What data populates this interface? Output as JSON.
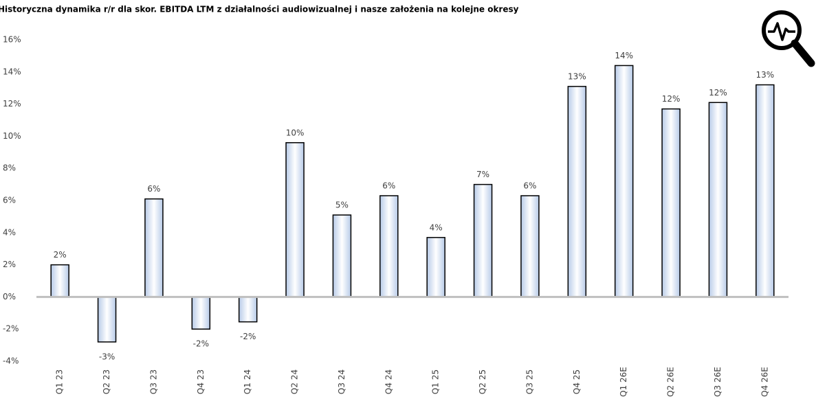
{
  "chart_data": {
    "type": "bar",
    "title": "Historyczna dynamika r/r dla skor. EBITDA LTM z działalności audiowizualnej i nasze założenia na kolejne okresy",
    "categories": [
      "Q1 23",
      "Q2 23",
      "Q3 23",
      "Q4 23",
      "Q1 24",
      "Q2 24",
      "Q3 24",
      "Q4 24",
      "Q1 25",
      "Q2 25",
      "Q3 25",
      "Q4 25",
      "Q1 26E",
      "Q2 26E",
      "Q3 26E",
      "Q4 26E"
    ],
    "values": [
      2.0,
      -2.8,
      6.1,
      -2.0,
      -1.55,
      9.6,
      5.1,
      6.3,
      3.7,
      7.0,
      6.3,
      13.1,
      14.4,
      11.7,
      12.1,
      13.2
    ],
    "value_labels": [
      "2%",
      "-3%",
      "6%",
      "-2%",
      "-2%",
      "10%",
      "5%",
      "6%",
      "4%",
      "7%",
      "6%",
      "13%",
      "14%",
      "12%",
      "12%",
      "13%"
    ],
    "color": "#c5d5ec",
    "ylim": [
      -4,
      16
    ],
    "yticks": [
      {
        "value": -4,
        "label": "-4%"
      },
      {
        "value": -2,
        "label": "-2%"
      },
      {
        "value": 0,
        "label": "0%"
      },
      {
        "value": 2,
        "label": "2%"
      },
      {
        "value": 4,
        "label": "4%"
      },
      {
        "value": 6,
        "label": "6%"
      },
      {
        "value": 8,
        "label": "8%"
      },
      {
        "value": 10,
        "label": "10%"
      },
      {
        "value": 12,
        "label": "12%"
      },
      {
        "value": 14,
        "label": "14%"
      },
      {
        "value": 16,
        "label": "16%"
      }
    ],
    "grid": false
  }
}
